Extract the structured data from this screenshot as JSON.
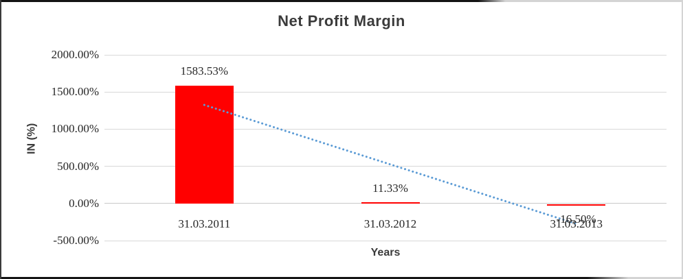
{
  "window": {
    "background": "#ffffff"
  },
  "chart_data": {
    "type": "bar",
    "title": "Net Profit Margin",
    "xlabel": "Years",
    "ylabel": "IN (%)",
    "categories": [
      "31.03.2011",
      "31.03.2012",
      "31.03.2013"
    ],
    "values": [
      1583.53,
      11.33,
      -16.5
    ],
    "data_labels": [
      "1583.53%",
      "11.33%",
      "-16.50%"
    ],
    "ylim": [
      -500,
      2000
    ],
    "yticks": [
      {
        "value": 2000,
        "label": "2000.00%"
      },
      {
        "value": 1500,
        "label": "1500.00%"
      },
      {
        "value": 1000,
        "label": "1000.00%"
      },
      {
        "value": 500,
        "label": "500.00%"
      },
      {
        "value": 0,
        "label": "0.00%"
      },
      {
        "value": -500,
        "label": "-500.00%"
      }
    ],
    "grid": true,
    "legend": false,
    "bar_color": "#ff0000",
    "trendline": {
      "type": "linear",
      "style": "dotted",
      "color": "#5b9bd5",
      "start_value": 1326.1,
      "end_value": -273.9
    }
  }
}
